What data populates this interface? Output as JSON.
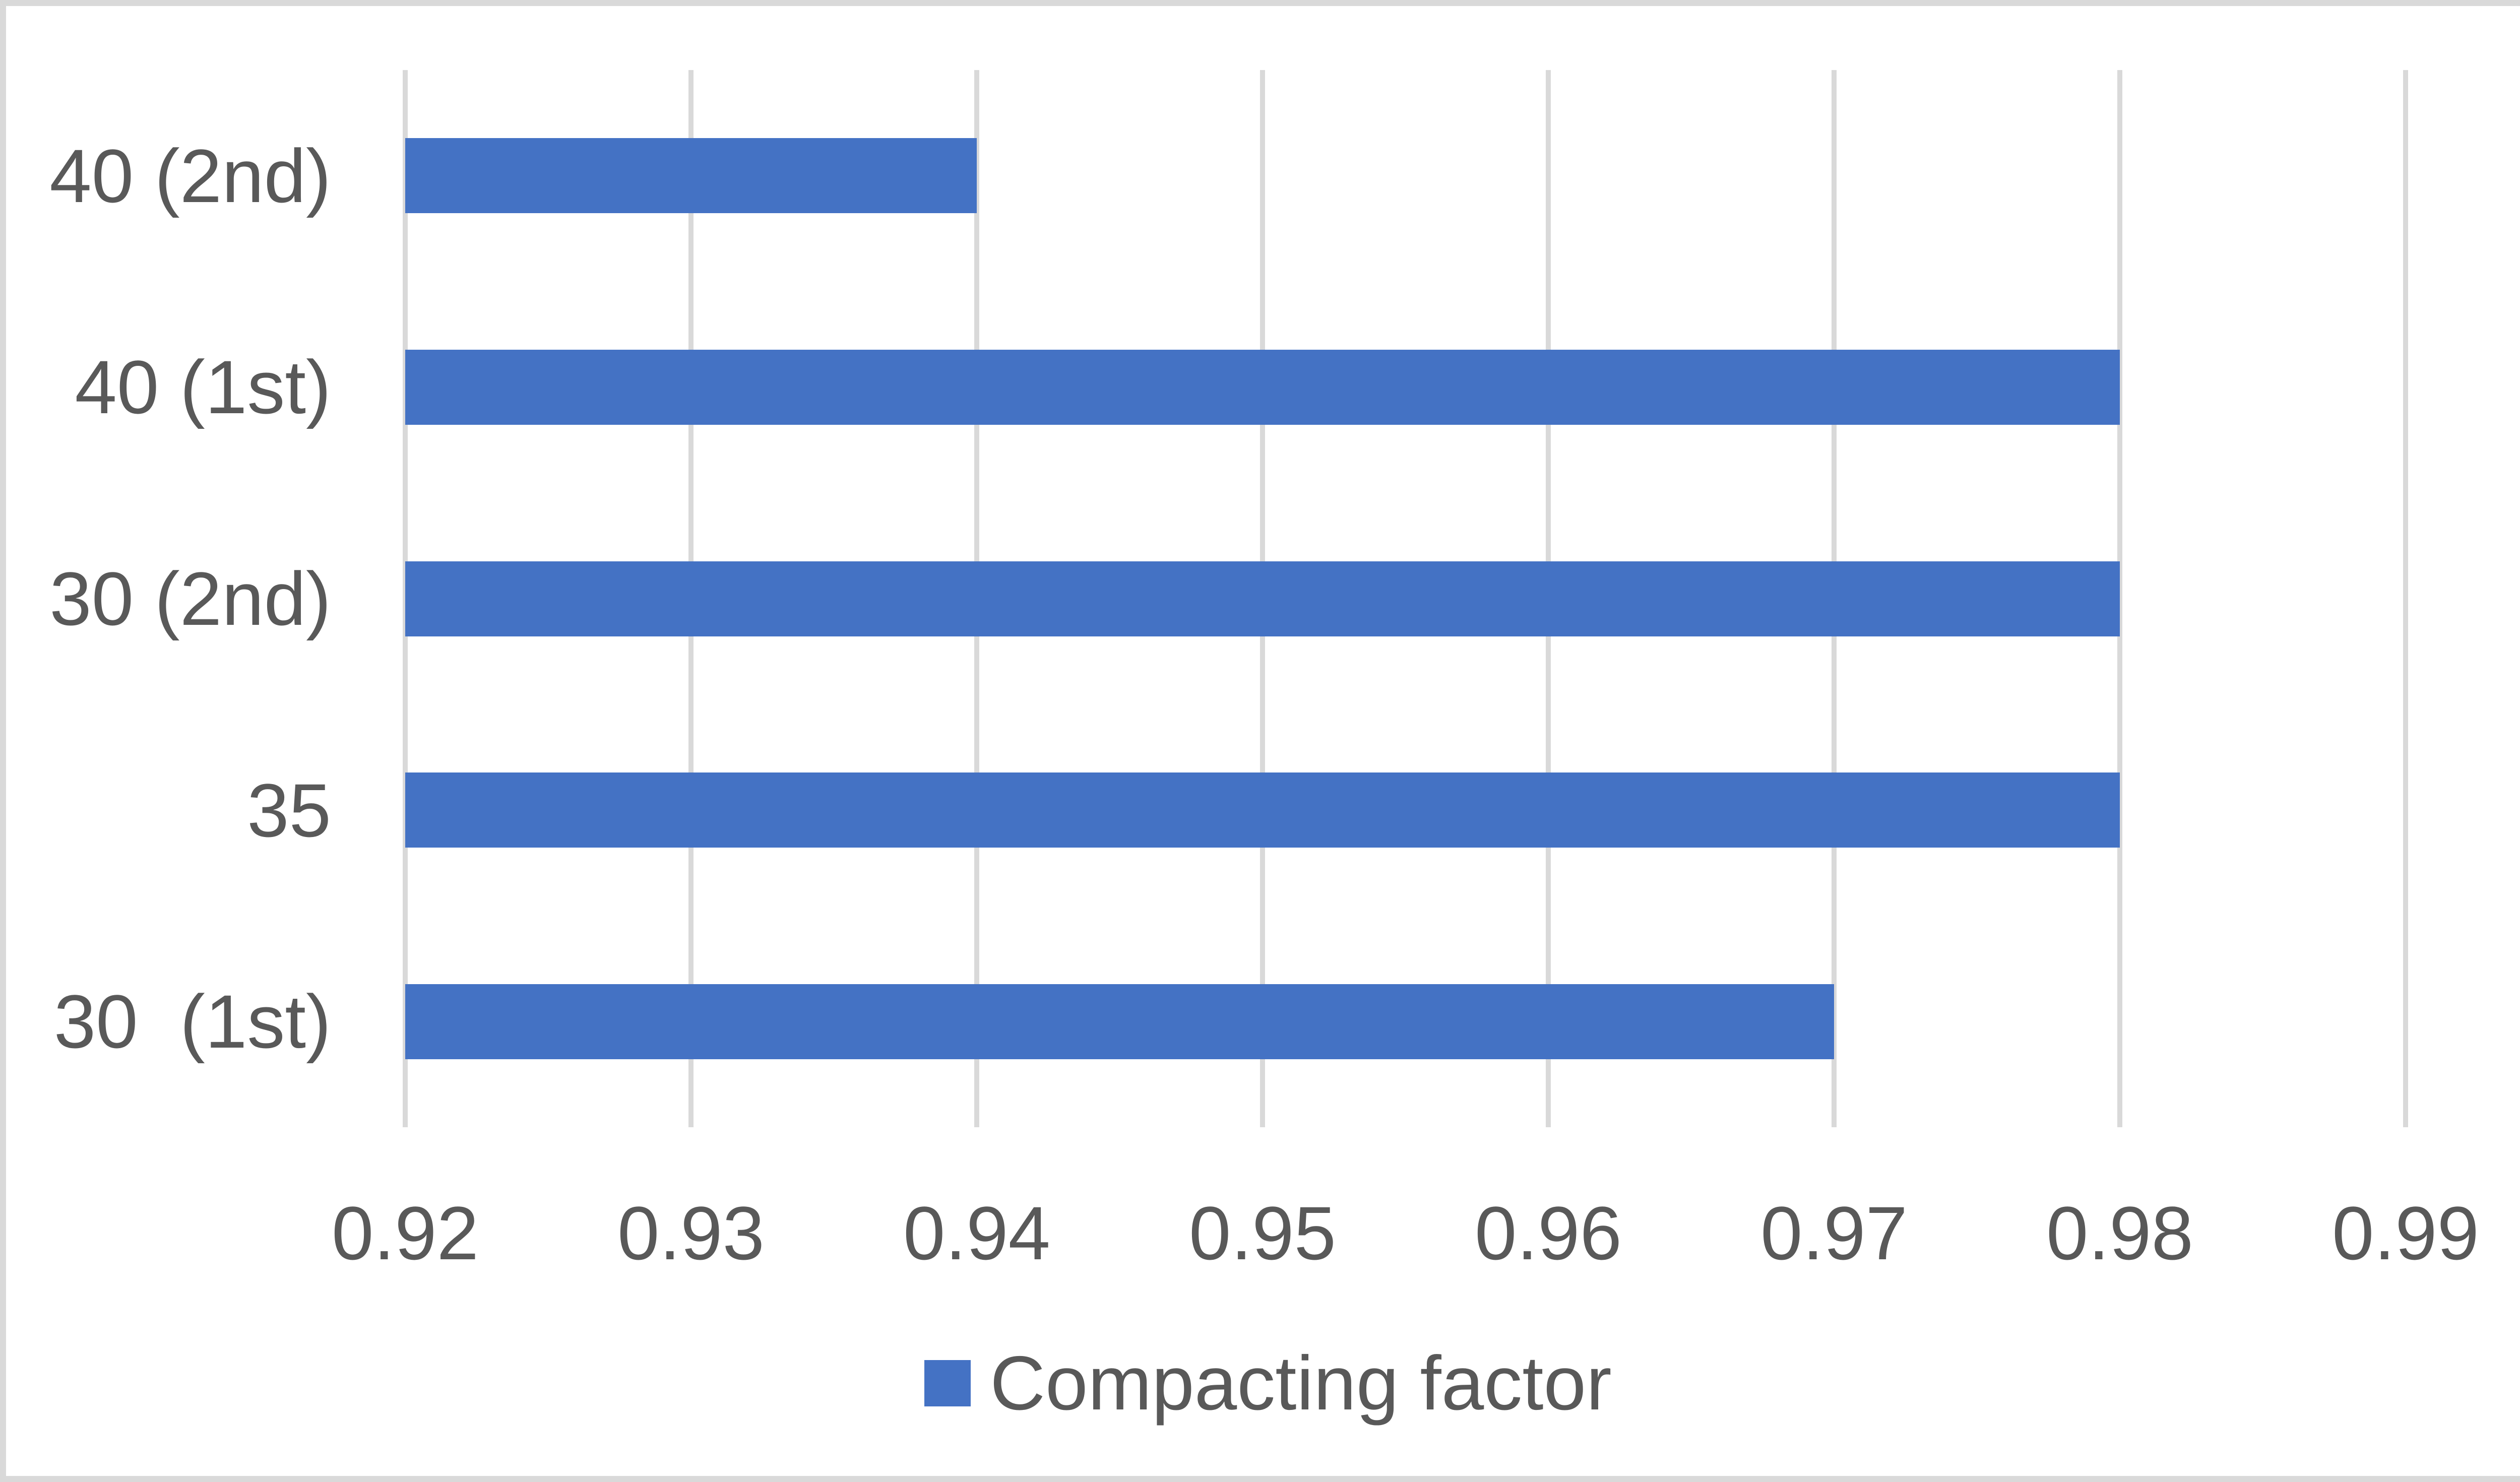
{
  "figure": {
    "background": "#FFFFFF",
    "border_color": "#D9D9D9"
  },
  "chart_data": {
    "type": "bar",
    "orientation": "horizontal",
    "title": "",
    "xlabel": "",
    "ylabel": "",
    "categories": [
      "40 (2nd)",
      "40 (1st)",
      "30 (2nd)",
      "35",
      "30  (1st)"
    ],
    "series": [
      {
        "name": "Compacting factor",
        "values": [
          0.94,
          0.98,
          0.98,
          0.98,
          0.97
        ]
      }
    ],
    "xlim": [
      0.92,
      0.99
    ],
    "x_tick_step": 0.01,
    "x_ticks": [
      "0.92",
      "0.93",
      "0.94",
      "0.95",
      "0.96",
      "0.97",
      "0.98",
      "0.99"
    ],
    "grid": true,
    "legend_position": "bottom-center",
    "bar_color": "#4472C4",
    "gridline_color": "#D9D9D9",
    "text_color": "#595959"
  },
  "legend": {
    "label": "Compacting factor",
    "swatch_color": "#4472C4"
  }
}
